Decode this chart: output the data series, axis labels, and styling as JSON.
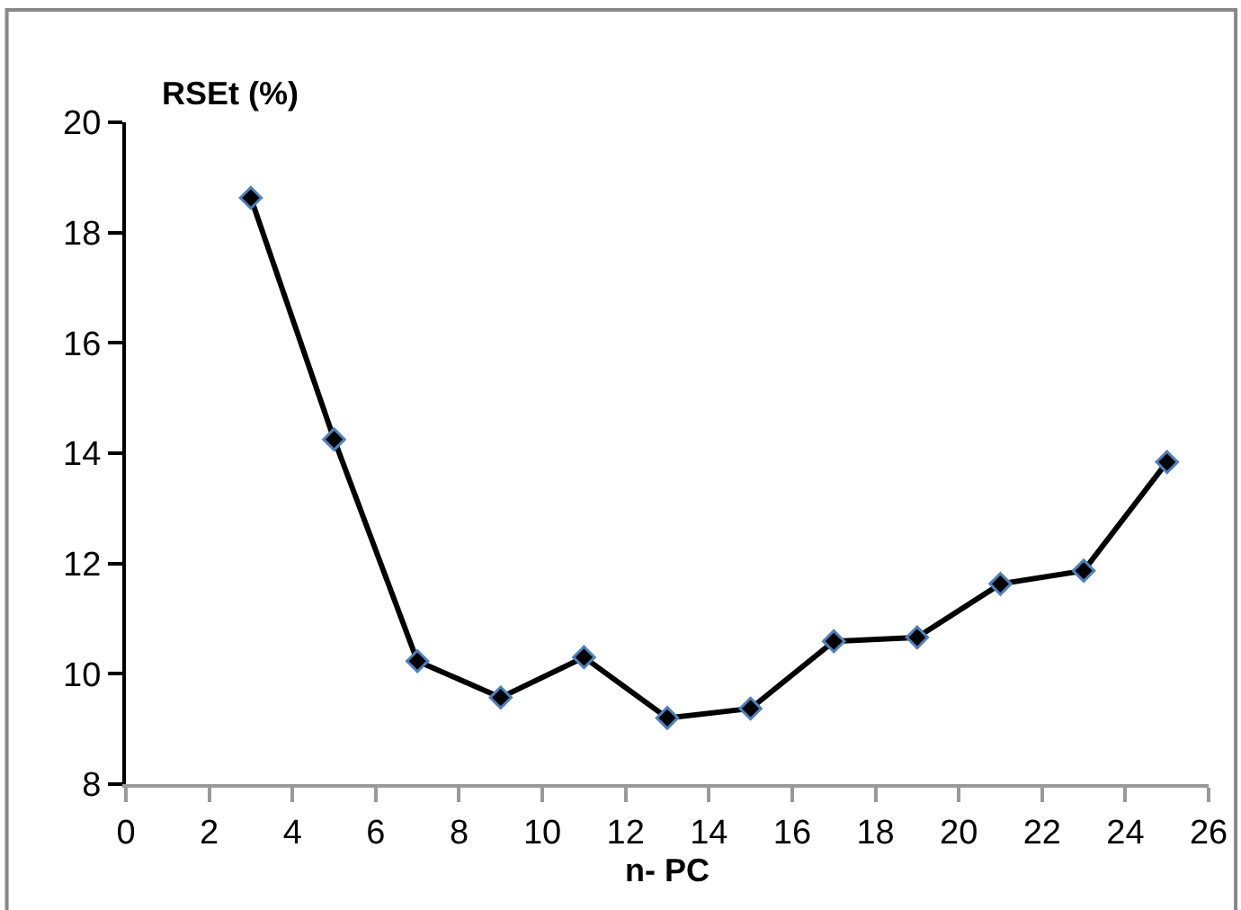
{
  "chart_data": {
    "type": "line",
    "xlabel": "n- PC",
    "ylabel": "RSEt (%)",
    "x": [
      3,
      5,
      7,
      9,
      11,
      13,
      15,
      17,
      19,
      21,
      23,
      25
    ],
    "series": [
      {
        "color": "#000000",
        "values": [
          18.63,
          14.25,
          10.23,
          9.57,
          10.3,
          9.2,
          9.37,
          10.59,
          10.66,
          11.63,
          11.87,
          13.84
        ]
      }
    ],
    "xlim": [
      0,
      26
    ],
    "xticks": [
      0,
      2,
      4,
      6,
      8,
      10,
      12,
      14,
      16,
      18,
      20,
      22,
      24,
      26
    ],
    "ylim": [
      8,
      20
    ],
    "yticks": [
      8,
      10,
      12,
      14,
      16,
      18,
      20
    ],
    "grid": false,
    "marker": "diamond",
    "line_style": "solid"
  }
}
